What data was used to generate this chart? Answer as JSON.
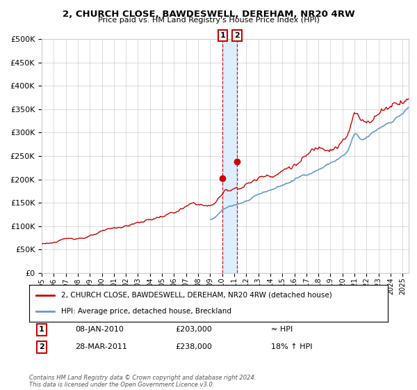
{
  "title1": "2, CHURCH CLOSE, BAWDESWELL, DEREHAM, NR20 4RW",
  "title2": "Price paid vs. HM Land Registry's House Price Index (HPI)",
  "legend_label1": "2, CHURCH CLOSE, BAWDESWELL, DEREHAM, NR20 4RW (detached house)",
  "legend_label2": "HPI: Average price, detached house, Breckland",
  "transaction1_date": "08-JAN-2010",
  "transaction1_price": 203000,
  "transaction1_label": "1",
  "transaction1_note": "≈ HPI",
  "transaction2_date": "28-MAR-2011",
  "transaction2_price": 238000,
  "transaction2_label": "2",
  "transaction2_note": "18% ↑ HPI",
  "footer": "Contains HM Land Registry data © Crown copyright and database right 2024.\nThis data is licensed under the Open Government Licence v3.0.",
  "line_color_red": "#cc0000",
  "line_color_blue": "#6699cc",
  "highlight_color": "#ddeeff",
  "vline_color": "#cc0000",
  "marker_color": "#cc0000",
  "grid_color": "#cccccc",
  "background_color": "#ffffff",
  "ylim": [
    0,
    500000
  ],
  "ytick_step": 50000,
  "year_start": 1995,
  "year_end": 2025,
  "transaction1_year": 2010.03,
  "transaction2_year": 2011.24
}
